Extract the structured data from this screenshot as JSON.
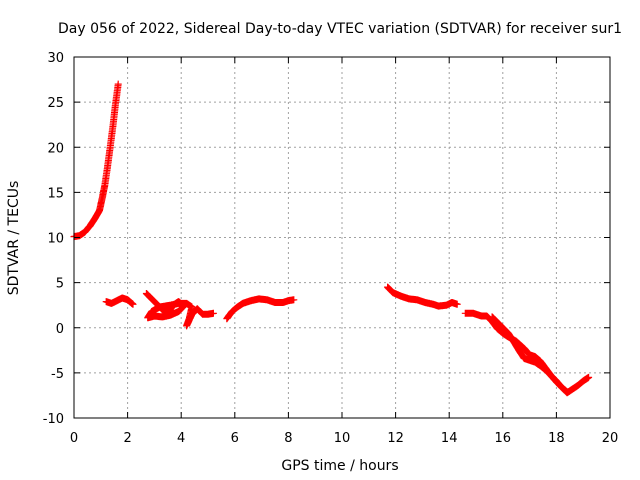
{
  "chart_data": {
    "type": "scatter",
    "title": "Day 056 of 2022, Sidereal Day-to-day VTEC variation (SDTVAR) for receiver sur1",
    "xlabel": "GPS time / hours",
    "ylabel": "SDTVAR / TECUs",
    "xlim": [
      0,
      20
    ],
    "ylim": [
      -10,
      30
    ],
    "xticks": [
      0,
      2,
      4,
      6,
      8,
      10,
      12,
      14,
      16,
      18,
      20
    ],
    "yticks": [
      -10,
      -5,
      0,
      5,
      10,
      15,
      20,
      25,
      30
    ],
    "grid": true,
    "marker": "plus",
    "color": "#ff0000",
    "series": [
      {
        "name": "SDTVAR",
        "segments": [
          [
            [
              0.0,
              10.1
            ],
            [
              0.2,
              10.2
            ],
            [
              0.4,
              10.6
            ],
            [
              0.6,
              11.3
            ],
            [
              0.8,
              12.2
            ],
            [
              0.95,
              13.0
            ],
            [
              1.05,
              14.3
            ],
            [
              1.15,
              15.8
            ],
            [
              1.25,
              17.8
            ],
            [
              1.35,
              20.0
            ],
            [
              1.45,
              22.3
            ],
            [
              1.55,
              24.8
            ],
            [
              1.65,
              27.0
            ]
          ],
          [
            [
              1.2,
              2.9
            ],
            [
              1.4,
              2.7
            ],
            [
              1.6,
              3.0
            ],
            [
              1.8,
              3.3
            ],
            [
              2.0,
              3.1
            ],
            [
              2.2,
              2.6
            ]
          ],
          [
            [
              2.7,
              3.8
            ],
            [
              2.9,
              3.2
            ],
            [
              3.1,
              2.6
            ],
            [
              3.3,
              2.0
            ],
            [
              3.5,
              1.6
            ],
            [
              3.7,
              2.5
            ],
            [
              3.9,
              2.9
            ],
            [
              4.1,
              2.4
            ],
            [
              3.9,
              1.8
            ],
            [
              3.6,
              1.4
            ],
            [
              3.3,
              1.2
            ],
            [
              3.0,
              1.3
            ],
            [
              2.75,
              1.1
            ],
            [
              2.9,
              1.8
            ],
            [
              3.2,
              2.3
            ],
            [
              3.6,
              2.5
            ],
            [
              3.9,
              2.7
            ],
            [
              4.2,
              2.7
            ],
            [
              4.4,
              2.3
            ],
            [
              4.3,
              1.0
            ],
            [
              4.2,
              0.2
            ],
            [
              4.4,
              1.5
            ],
            [
              4.6,
              2.1
            ],
            [
              4.8,
              1.5
            ],
            [
              5.0,
              1.5
            ],
            [
              5.2,
              1.6
            ]
          ],
          [
            [
              5.7,
              1.0
            ],
            [
              5.9,
              1.8
            ],
            [
              6.1,
              2.3
            ],
            [
              6.3,
              2.7
            ],
            [
              6.6,
              3.0
            ],
            [
              6.9,
              3.2
            ],
            [
              7.2,
              3.1
            ],
            [
              7.5,
              2.8
            ],
            [
              7.8,
              2.8
            ],
            [
              8.0,
              3.0
            ],
            [
              8.2,
              3.1
            ]
          ],
          [
            [
              11.7,
              4.5
            ],
            [
              11.9,
              3.9
            ],
            [
              12.2,
              3.5
            ],
            [
              12.5,
              3.2
            ],
            [
              12.8,
              3.1
            ],
            [
              13.1,
              2.8
            ],
            [
              13.4,
              2.6
            ],
            [
              13.6,
              2.4
            ],
            [
              13.9,
              2.5
            ],
            [
              14.1,
              2.8
            ],
            [
              14.3,
              2.6
            ]
          ],
          [
            [
              14.6,
              1.6
            ],
            [
              14.9,
              1.6
            ],
            [
              15.2,
              1.3
            ],
            [
              15.4,
              1.3
            ],
            [
              15.6,
              0.7
            ],
            [
              15.8,
              -0.1
            ],
            [
              16.0,
              -0.6
            ],
            [
              16.2,
              -1.0
            ],
            [
              16.5,
              -1.5
            ],
            [
              16.8,
              -2.3
            ],
            [
              17.0,
              -3.0
            ],
            [
              17.2,
              -3.2
            ],
            [
              17.4,
              -3.7
            ],
            [
              17.6,
              -4.5
            ],
            [
              17.8,
              -5.3
            ],
            [
              18.0,
              -6.0
            ],
            [
              18.2,
              -6.6
            ],
            [
              18.4,
              -7.2
            ],
            [
              18.6,
              -6.8
            ],
            [
              18.8,
              -6.4
            ],
            [
              19.0,
              -5.9
            ],
            [
              19.2,
              -5.5
            ]
          ],
          [
            [
              15.6,
              1.2
            ],
            [
              15.8,
              0.6
            ],
            [
              16.0,
              0.0
            ],
            [
              16.2,
              -0.6
            ],
            [
              16.4,
              -1.5
            ],
            [
              16.6,
              -2.5
            ],
            [
              16.8,
              -3.4
            ],
            [
              17.0,
              -3.6
            ],
            [
              17.2,
              -3.8
            ],
            [
              17.4,
              -4.2
            ],
            [
              17.6,
              -4.7
            ],
            [
              17.8,
              -5.3
            ],
            [
              18.0,
              -5.9
            ],
            [
              18.2,
              -6.6
            ],
            [
              18.4,
              -7.1
            ]
          ]
        ]
      }
    ]
  }
}
